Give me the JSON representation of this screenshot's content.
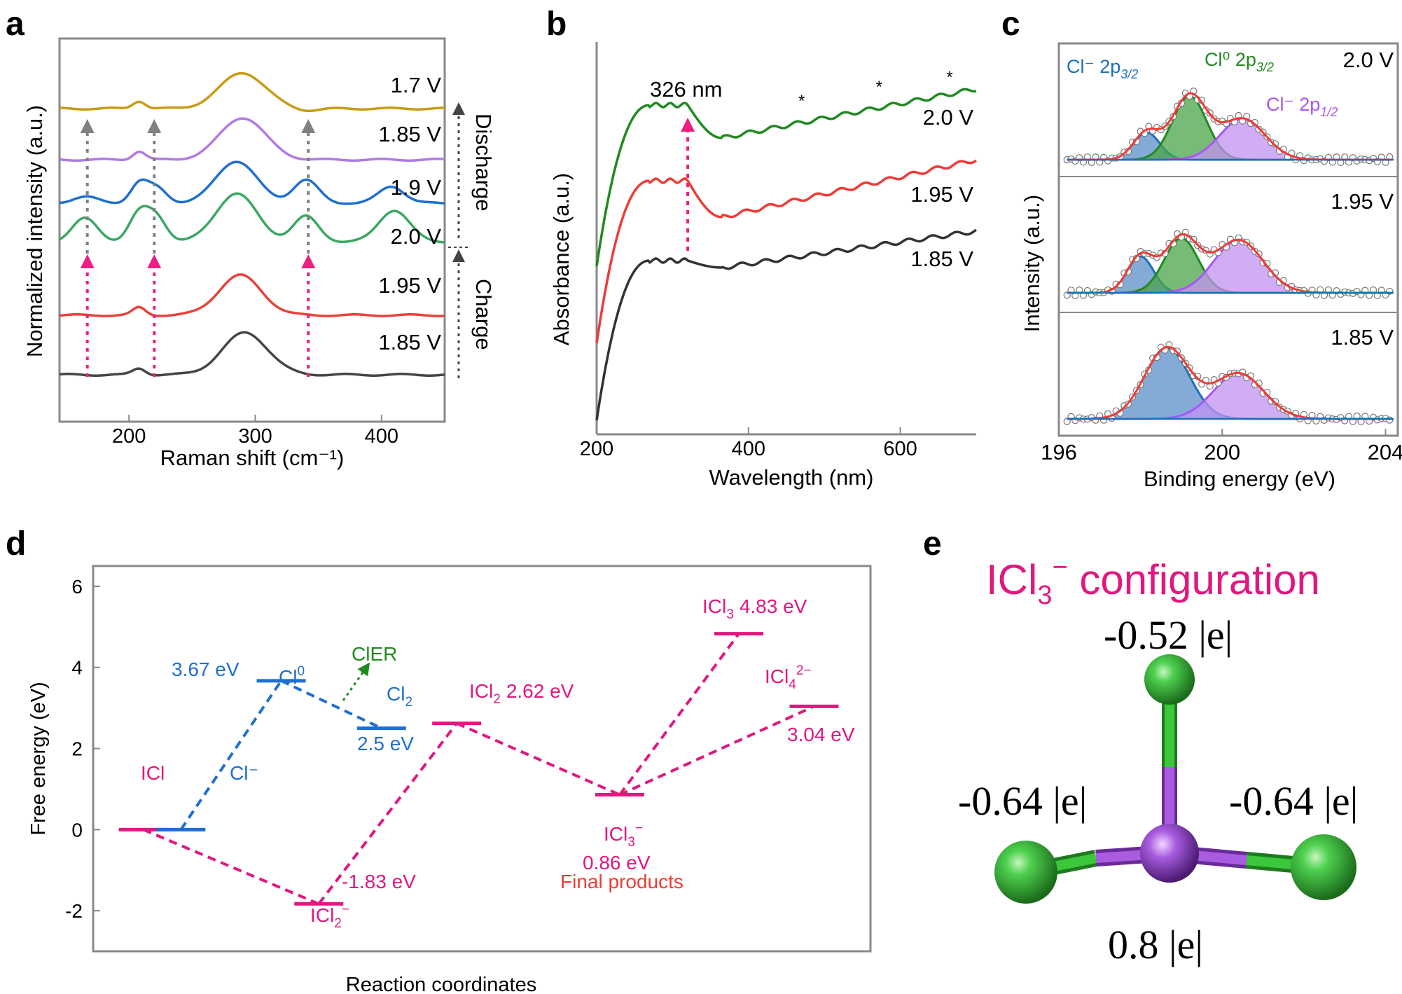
{
  "panels": {
    "a": "a",
    "b": "b",
    "c": "c",
    "d": "d",
    "e": "e"
  },
  "chart_data": [
    {
      "id": "a",
      "type": "line",
      "title": "",
      "xlabel": "Raman shift (cm⁻¹)",
      "ylabel": "Normalized intensity (a.u.)",
      "xlim": [
        145,
        450
      ],
      "xticks": [
        "200",
        "300",
        "400"
      ],
      "xtick_values": [
        200,
        300,
        400
      ],
      "series": [
        {
          "name": "1.7 V",
          "color": "#c89b16",
          "offset": 5,
          "peaks": [
            [
              208,
              0.18,
              5
            ],
            [
              290,
              0.85,
              18
            ],
            [
              340,
              -0.05,
              10
            ]
          ]
        },
        {
          "name": "1.85 V",
          "color": "#b179e3",
          "offset": 4,
          "peaks": [
            [
              208,
              0.2,
              5
            ],
            [
              290,
              1.0,
              18
            ]
          ]
        },
        {
          "name": "1.9 V",
          "color": "#1f6fd1",
          "offset": 3,
          "peaks": [
            [
              165,
              0.15,
              10
            ],
            [
              208,
              0.45,
              7
            ],
            [
              222,
              0.35,
              8
            ],
            [
              285,
              1.0,
              16
            ],
            [
              340,
              0.55,
              10
            ],
            [
              408,
              0.4,
              10
            ]
          ]
        },
        {
          "name": "2.0 V",
          "color": "#3aa861",
          "offset": 2,
          "peaks": [
            [
              165,
              0.55,
              10
            ],
            [
              208,
              0.65,
              8
            ],
            [
              222,
              0.55,
              8
            ],
            [
              285,
              1.15,
              16
            ],
            [
              340,
              0.6,
              10
            ],
            [
              410,
              0.75,
              12
            ]
          ]
        },
        {
          "name": "1.95 V",
          "color": "#e8423c",
          "offset": 1,
          "peaks": [
            [
              208,
              0.18,
              5
            ],
            [
              288,
              0.95,
              17
            ]
          ]
        },
        {
          "name": "1.85 V",
          "color": "#454545",
          "offset": 0,
          "peaks": [
            [
              208,
              0.15,
              5
            ],
            [
              292,
              1.0,
              18
            ]
          ]
        }
      ],
      "arrows": [
        {
          "x": 167,
          "group": "discharge",
          "color": "#808080"
        },
        {
          "x": 220,
          "group": "discharge",
          "color": "#808080"
        },
        {
          "x": 342,
          "group": "discharge",
          "color": "#808080"
        },
        {
          "x": 167,
          "group": "charge",
          "color": "#ee1e82"
        },
        {
          "x": 220,
          "group": "charge",
          "color": "#ee1e82"
        },
        {
          "x": 342,
          "group": "charge",
          "color": "#ee1e82"
        }
      ],
      "side_labels": [
        "Discharge",
        "Charge"
      ]
    },
    {
      "id": "b",
      "type": "line",
      "xlabel": "Wavelength (nm)",
      "ylabel": "Absorbance (a.u.)",
      "xlim": [
        200,
        700
      ],
      "xticks": [
        "200",
        "400",
        "600"
      ],
      "xtick_values": [
        200,
        400,
        600
      ],
      "series": [
        {
          "name": "2.0 V",
          "color": "#1f8a1f",
          "offset": 2
        },
        {
          "name": "1.95 V",
          "color": "#ef3b36",
          "offset": 1
        },
        {
          "name": "1.85 V",
          "color": "#333333",
          "offset": 0
        }
      ],
      "annotation": "326 nm",
      "annotation_x": 320,
      "markers": [
        {
          "label": "*",
          "x": 470
        },
        {
          "label": "*",
          "x": 572
        },
        {
          "label": "*",
          "x": 665
        }
      ]
    },
    {
      "id": "c",
      "type": "line",
      "xlabel": "Binding energy (eV)",
      "ylabel": "Intensity (a.u.)",
      "xlim": [
        196,
        204.3
      ],
      "xticks": [
        "196",
        "200",
        "204"
      ],
      "xtick_values": [
        196,
        200,
        204
      ],
      "legend": [
        {
          "text": "Cl⁻ 2p",
          "sub": "3/2",
          "color": "#1d6fb8"
        },
        {
          "text": "Cl⁰ 2p",
          "sub": "3/2",
          "color": "#1f8a1f"
        },
        {
          "text": "Cl⁻ 2p",
          "sub": "1/2",
          "color": "#a855f7"
        }
      ],
      "subpanels": [
        {
          "label": "2.0 V",
          "components": [
            {
              "name": "Cl⁻ 2p3/2",
              "center": 198.15,
              "height": 0.3,
              "width": 0.32,
              "color": "#1d6fb8",
              "fill": "#5b8fc7"
            },
            {
              "name": "Cl⁰ 2p3/2",
              "center": 199.2,
              "height": 0.7,
              "width": 0.42,
              "color": "#1f8a1f",
              "fill": "#4aa44a"
            },
            {
              "name": "Cl⁻ 2p1/2",
              "center": 200.5,
              "height": 0.45,
              "width": 0.55,
              "color": "#a855f7",
              "fill": "#c292f2"
            }
          ]
        },
        {
          "label": "1.95 V",
          "components": [
            {
              "name": "Cl⁻ 2p3/2",
              "center": 198.0,
              "height": 0.4,
              "width": 0.32,
              "color": "#1d6fb8",
              "fill": "#5b8fc7"
            },
            {
              "name": "Cl⁰ 2p3/2",
              "center": 199.0,
              "height": 0.6,
              "width": 0.42,
              "color": "#1f8a1f",
              "fill": "#4aa44a"
            },
            {
              "name": "Cl⁻ 2p1/2",
              "center": 200.4,
              "height": 0.58,
              "width": 0.6,
              "color": "#a855f7",
              "fill": "#c292f2"
            }
          ]
        },
        {
          "label": "1.85 V",
          "components": [
            {
              "name": "Cl⁻ 2p3/2",
              "center": 198.65,
              "height": 0.78,
              "width": 0.55,
              "color": "#1d6fb8",
              "fill": "#5b8fc7"
            },
            {
              "name": "Cl⁻ 2p1/2",
              "center": 200.4,
              "height": 0.5,
              "width": 0.62,
              "color": "#a855f7",
              "fill": "#c292f2"
            }
          ]
        }
      ]
    },
    {
      "id": "d",
      "type": "line",
      "xlabel": "Reaction coordinates",
      "ylabel": "Free energy (eV)",
      "ylim": [
        -3,
        6.5
      ],
      "yticks": [
        "-2",
        "0",
        "2",
        "4",
        "6"
      ],
      "ytick_values": [
        -2,
        0,
        2,
        4,
        6
      ],
      "levels": [
        {
          "name": "ICl",
          "value": 0,
          "pos": 1.0,
          "color": "#e2177f"
        },
        {
          "name": "Cl⁻",
          "value": 0,
          "pos": 1.6,
          "color": "#1f6fd1"
        },
        {
          "name": "Cl⁰",
          "value": 3.67,
          "pos": 3.2,
          "color": "#1f6fd1"
        },
        {
          "name": "Cl₂",
          "value": 2.5,
          "pos": 4.8,
          "color": "#1f6fd1"
        },
        {
          "name": "ICl₂⁻",
          "value": -1.83,
          "pos": 3.8,
          "color": "#e2177f"
        },
        {
          "name": "ICl₂",
          "value": 2.62,
          "pos": 6.0,
          "color": "#e2177f"
        },
        {
          "name": "ICl₃⁻",
          "value": 0.86,
          "pos": 8.6,
          "color": "#e2177f"
        },
        {
          "name": "ICl₃",
          "value": 4.83,
          "pos": 10.5,
          "color": "#e2177f"
        },
        {
          "name": "ICl₄²⁻",
          "value": 3.04,
          "pos": 11.7,
          "color": "#e2177f"
        }
      ],
      "texts": {
        "icl": "ICl",
        "clm": "Cl⁻",
        "cl0_base": "Cl",
        "cl0_sup": "0",
        "cl0_energy": "3.67 eV",
        "cler": "ClER",
        "cl2_base": "Cl",
        "cl2_sub": "2",
        "cl2_energy": "2.5 eV",
        "icl2_base": "ICl",
        "icl2_sub": "2",
        "icl2_energy": "2.62 eV",
        "icl2m_base": "ICl",
        "icl2m_sub": "2",
        "icl2m_sup": "−",
        "icl2m_energy": "-1.83 eV",
        "icl3m_base": "ICl",
        "icl3m_sub": "3",
        "icl3m_sup": "−",
        "icl3m_energy": "0.86 eV",
        "final_products": "Final products",
        "icl3_base": "ICl",
        "icl3_sub": "3",
        "icl3_energy": "4.83 eV",
        "icl4_base": "ICl",
        "icl4_sub": "4",
        "icl4_sup": "2−",
        "icl4_energy": "3.04 eV"
      }
    }
  ],
  "panel_e": {
    "title_base": "ICl",
    "title_sub": "3",
    "title_sup": "−",
    "title_rest": " configuration",
    "charge_top": "-0.52 |e|",
    "charge_left": "-0.64 |e|",
    "charge_right": "-0.64 |e|",
    "charge_center": "0.8 |e|",
    "colors": {
      "cl": "#33c233",
      "i": "#9b44d4",
      "title": "#e2177f"
    }
  }
}
